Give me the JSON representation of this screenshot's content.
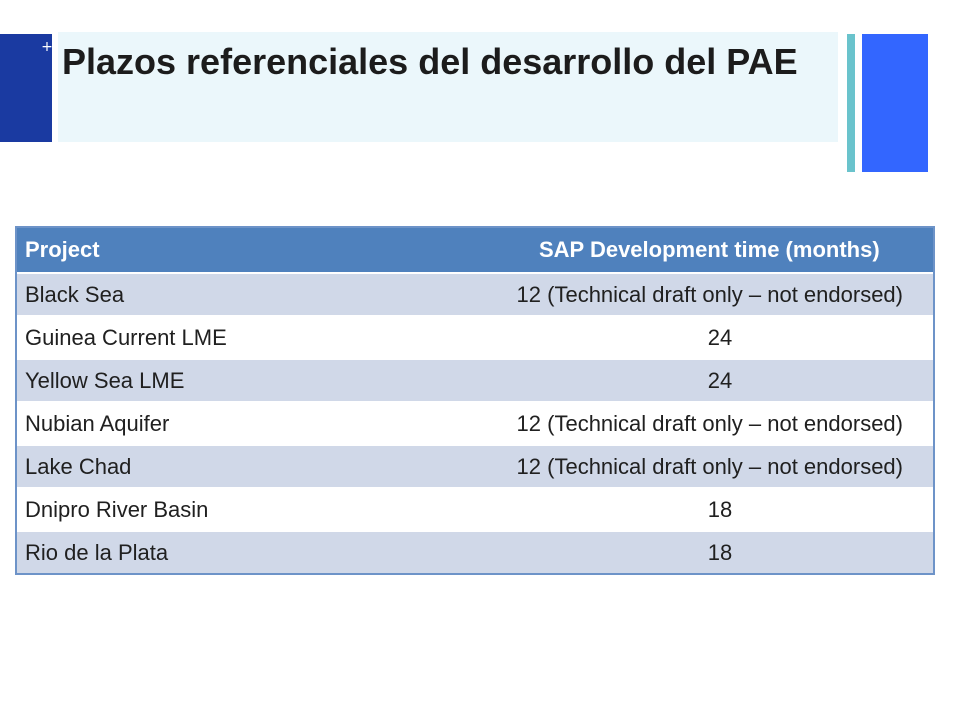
{
  "slide": {
    "title": "Plazos referenciales del desarrollo del PAE",
    "plus": "+"
  },
  "table": {
    "headers": [
      "Project",
      "SAP Development time (months)"
    ],
    "rows": [
      {
        "project": "Black Sea",
        "time": "12 (Technical draft only – not endorsed)"
      },
      {
        "project": "Guinea Current LME",
        "time": "24"
      },
      {
        "project": "Yellow Sea LME",
        "time": "24"
      },
      {
        "project": "Nubian Aquifer",
        "time": "12 (Technical draft only – not endorsed)"
      },
      {
        "project": "Lake Chad",
        "time": "12 (Technical draft only – not endorsed)"
      },
      {
        "project": "Dnipro River Basin",
        "time": "18"
      },
      {
        "project": "Rio de la Plata",
        "time": "18"
      }
    ]
  },
  "colors": {
    "accent_dark_blue": "#1a3aa1",
    "accent_blue": "#3366ff",
    "accent_teal": "#6ac3cc",
    "header_blue": "#4f81bd",
    "row_shade": "#d0d8e8"
  }
}
